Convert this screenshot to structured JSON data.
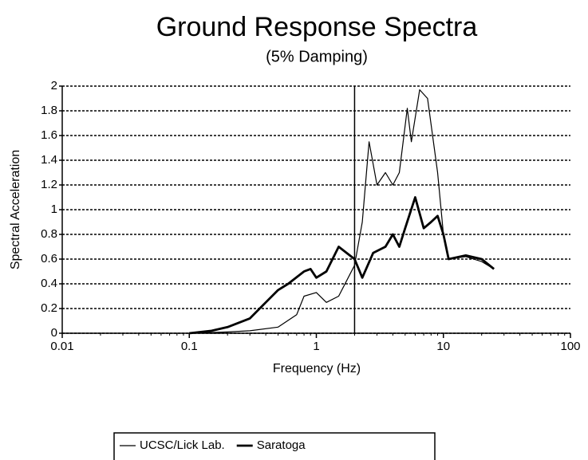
{
  "chart_data": {
    "type": "line",
    "title": "Ground Response Spectra",
    "subtitle": "(5% Damping)",
    "x_label": "Frequency (Hz)",
    "y_label": "Spectral Acceleration",
    "x_log": true,
    "xlim": [
      0.01,
      100
    ],
    "xticks": [
      0.01,
      0.1,
      1,
      10,
      100
    ],
    "ylim": [
      0,
      2
    ],
    "yticks": [
      0,
      0.2,
      0.4,
      0.6,
      0.8,
      1,
      1.2,
      1.4,
      1.6,
      1.8,
      2
    ],
    "grid": true,
    "vlines": [
      2
    ],
    "series": [
      {
        "name": "UCSC/Lick Lab.",
        "color": "#000000",
        "line_width": 1.2,
        "x": [
          0.1,
          0.2,
          0.3,
          0.5,
          0.7,
          0.8,
          1.0,
          1.2,
          1.5,
          2,
          2.3,
          2.6,
          3,
          3.5,
          4,
          4.5,
          5.2,
          5.6,
          6.5,
          7.5,
          9,
          10,
          11,
          15,
          20,
          25
        ],
        "values": [
          0,
          0.01,
          0.02,
          0.05,
          0.15,
          0.3,
          0.33,
          0.25,
          0.3,
          0.55,
          0.9,
          1.55,
          1.2,
          1.3,
          1.2,
          1.3,
          1.82,
          1.55,
          1.97,
          1.9,
          1.3,
          0.8,
          0.6,
          0.62,
          0.58,
          0.52
        ]
      },
      {
        "name": "Saratoga",
        "color": "#000000",
        "line_width": 2.8,
        "x": [
          0.1,
          0.15,
          0.2,
          0.3,
          0.4,
          0.5,
          0.6,
          0.8,
          0.9,
          1.0,
          1.2,
          1.5,
          2,
          2.3,
          2.8,
          3.5,
          4,
          4.5,
          5,
          6,
          7,
          8,
          9,
          10,
          11,
          15,
          20,
          25
        ],
        "values": [
          0,
          0.02,
          0.05,
          0.12,
          0.25,
          0.35,
          0.4,
          0.5,
          0.52,
          0.45,
          0.5,
          0.7,
          0.6,
          0.45,
          0.65,
          0.7,
          0.8,
          0.7,
          0.85,
          1.1,
          0.85,
          0.9,
          0.95,
          0.8,
          0.6,
          0.63,
          0.6,
          0.52
        ]
      }
    ]
  }
}
